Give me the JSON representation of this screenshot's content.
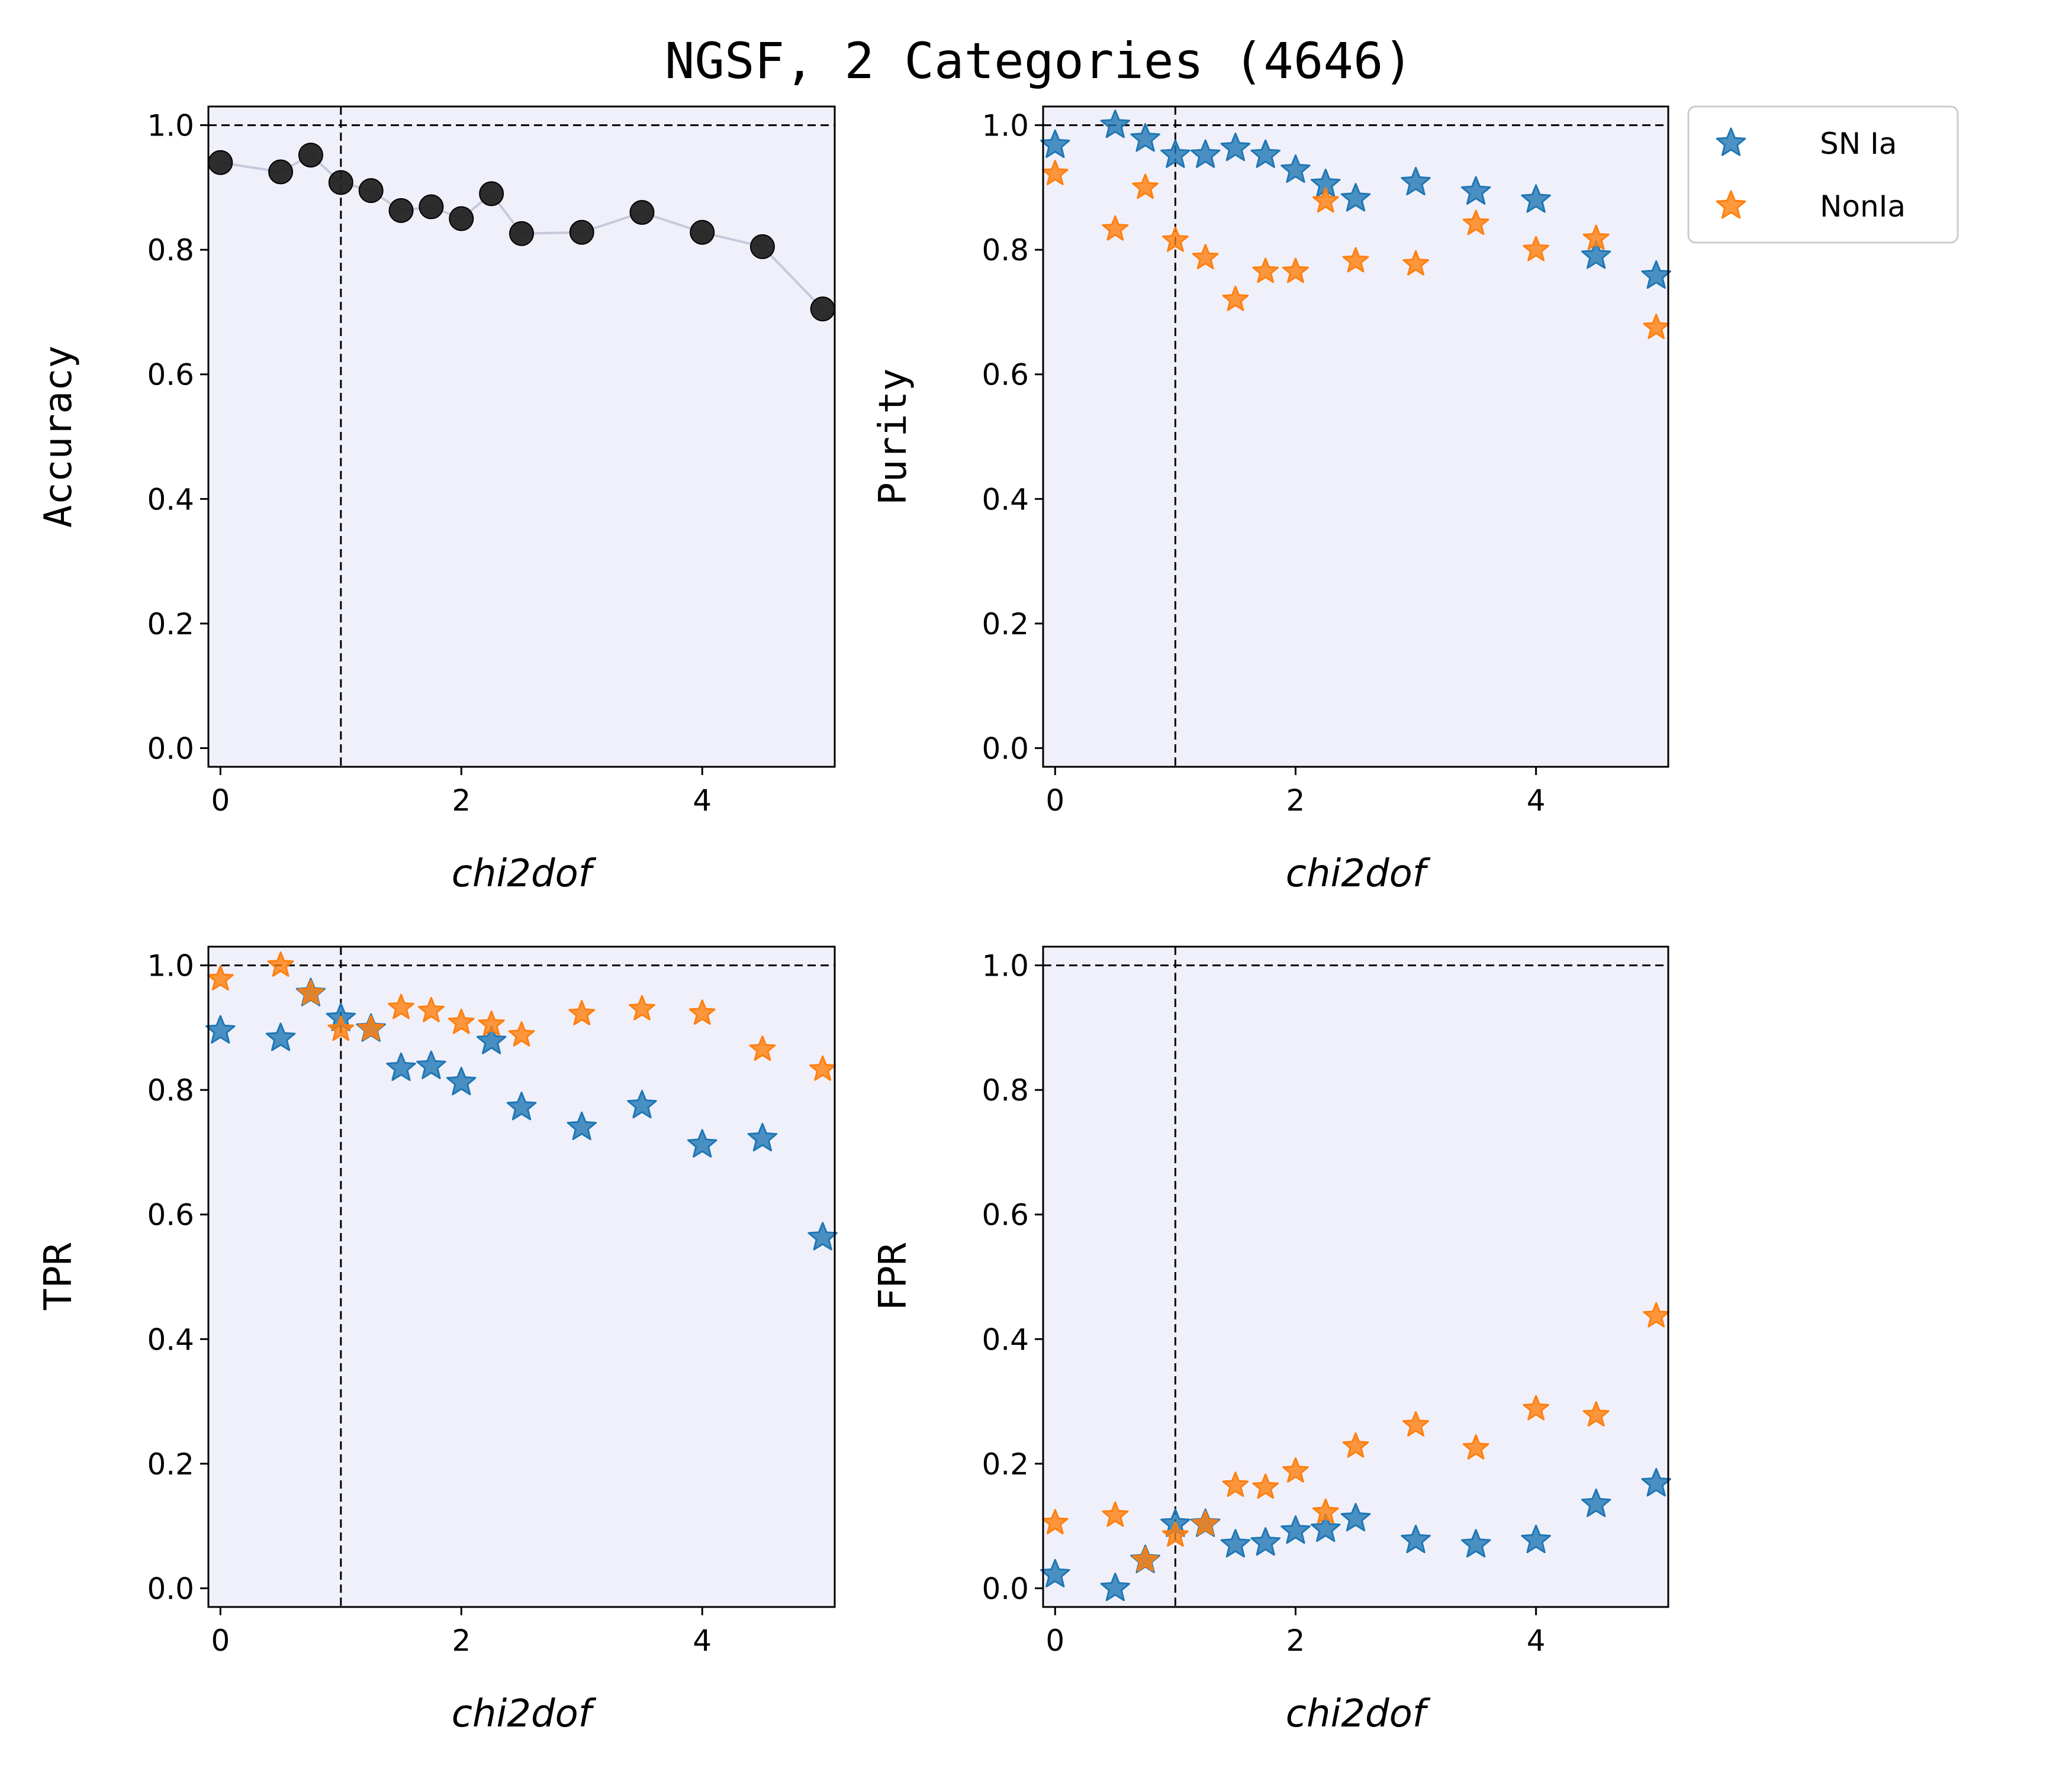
{
  "chart_data": {
    "title": "NGSF, 2 Categories (4646)",
    "legend": {
      "position": "outside-right-top",
      "entries": [
        {
          "name": "SN Ia",
          "color": "#1f77b4",
          "marker": "star"
        },
        {
          "name": "NonIa",
          "color": "#ff7f0e",
          "marker": "star"
        }
      ]
    },
    "panels": [
      {
        "id": "accuracy",
        "type": "line",
        "ylabel": "Accuracy",
        "xlabel": "chi2dof",
        "xlim": [
          -0.1,
          5.1
        ],
        "ylim": [
          -0.03,
          1.03
        ],
        "xticks": [
          0,
          2,
          4
        ],
        "yticks": [
          "0.0",
          "0.2",
          "0.4",
          "0.6",
          "0.8",
          "1.0"
        ],
        "hline": 1.0,
        "vline": 1.0,
        "background": "#f0f0fa",
        "series": [
          {
            "name": "Accuracy",
            "color": "#222222",
            "marker": "circle",
            "connect": true,
            "x": [
              0,
              0.5,
              0.75,
              1.0,
              1.25,
              1.5,
              1.75,
              2.0,
              2.25,
              2.5,
              3.0,
              3.5,
              4.0,
              4.5,
              5.0
            ],
            "y": [
              0.94,
              0.925,
              0.952,
              0.908,
              0.895,
              0.863,
              0.869,
              0.85,
              0.89,
              0.826,
              0.828,
              0.86,
              0.828,
              0.805,
              0.705
            ]
          }
        ]
      },
      {
        "id": "purity",
        "type": "scatter",
        "ylabel": "Purity",
        "xlabel": "chi2dof",
        "xlim": [
          -0.1,
          5.1
        ],
        "ylim": [
          -0.03,
          1.03
        ],
        "xticks": [
          0,
          2,
          4
        ],
        "yticks": [
          "0.0",
          "0.2",
          "0.4",
          "0.6",
          "0.8",
          "1.0"
        ],
        "hline": 1.0,
        "vline": 1.0,
        "background": "#f0f0fa",
        "series": [
          {
            "name": "SN Ia",
            "color": "#1f77b4",
            "marker": "star",
            "x": [
              0,
              0.5,
              0.75,
              1.0,
              1.25,
              1.5,
              1.75,
              2.0,
              2.25,
              2.5,
              3.0,
              3.5,
              4.0,
              4.5,
              5.0
            ],
            "y": [
              0.968,
              1.0,
              0.978,
              0.952,
              0.952,
              0.963,
              0.952,
              0.928,
              0.905,
              0.882,
              0.908,
              0.893,
              0.88,
              0.79,
              0.758
            ]
          },
          {
            "name": "NonIa",
            "color": "#ff7f0e",
            "marker": "star",
            "x": [
              0,
              0.5,
              0.75,
              1.0,
              1.25,
              1.5,
              1.75,
              2.0,
              2.25,
              2.5,
              3.0,
              3.5,
              4.0,
              4.5,
              5.0
            ],
            "y": [
              0.922,
              0.833,
              0.9,
              0.815,
              0.787,
              0.72,
              0.765,
              0.765,
              0.878,
              0.782,
              0.777,
              0.842,
              0.8,
              0.818,
              0.675
            ]
          }
        ]
      },
      {
        "id": "tpr",
        "type": "scatter",
        "ylabel": "TPR",
        "xlabel": "chi2dof",
        "xlim": [
          -0.1,
          5.1
        ],
        "ylim": [
          -0.03,
          1.03
        ],
        "xticks": [
          0,
          2,
          4
        ],
        "yticks": [
          "0.0",
          "0.2",
          "0.4",
          "0.6",
          "0.8",
          "1.0"
        ],
        "hline": 1.0,
        "vline": 1.0,
        "background": "#f0f0fa",
        "series": [
          {
            "name": "SN Ia",
            "color": "#1f77b4",
            "marker": "star",
            "x": [
              0,
              0.5,
              0.75,
              1.0,
              1.25,
              1.5,
              1.75,
              2.0,
              2.25,
              2.5,
              3.0,
              3.5,
              4.0,
              4.5,
              5.0
            ],
            "y": [
              0.895,
              0.883,
              0.955,
              0.915,
              0.898,
              0.835,
              0.838,
              0.812,
              0.878,
              0.772,
              0.74,
              0.775,
              0.712,
              0.722,
              0.563
            ]
          },
          {
            "name": "NonIa",
            "color": "#ff7f0e",
            "marker": "star",
            "x": [
              0,
              0.5,
              0.75,
              1.0,
              1.25,
              1.5,
              1.75,
              2.0,
              2.25,
              2.5,
              3.0,
              3.5,
              4.0,
              4.5,
              5.0
            ],
            "y": [
              0.978,
              1.0,
              0.955,
              0.897,
              0.898,
              0.932,
              0.927,
              0.908,
              0.905,
              0.888,
              0.922,
              0.93,
              0.923,
              0.865,
              0.833
            ]
          }
        ]
      },
      {
        "id": "fpr",
        "type": "scatter",
        "ylabel": "FPR",
        "xlabel": "chi2dof",
        "xlim": [
          -0.1,
          5.1
        ],
        "ylim": [
          -0.03,
          1.03
        ],
        "xticks": [
          0,
          2,
          4
        ],
        "yticks": [
          "0.0",
          "0.2",
          "0.4",
          "0.6",
          "0.8",
          "1.0"
        ],
        "hline": 1.0,
        "vline": 1.0,
        "background": "#f0f0fa",
        "series": [
          {
            "name": "SN Ia",
            "color": "#1f77b4",
            "marker": "star",
            "x": [
              0,
              0.5,
              0.75,
              1.0,
              1.25,
              1.5,
              1.75,
              2.0,
              2.25,
              2.5,
              3.0,
              3.5,
              4.0,
              4.5,
              5.0
            ],
            "y": [
              0.022,
              0.0,
              0.045,
              0.103,
              0.103,
              0.07,
              0.073,
              0.092,
              0.095,
              0.112,
              0.077,
              0.07,
              0.077,
              0.135,
              0.168
            ]
          },
          {
            "name": "NonIa",
            "color": "#ff7f0e",
            "marker": "star",
            "x": [
              0,
              0.5,
              0.75,
              1.0,
              1.25,
              1.5,
              1.75,
              2.0,
              2.25,
              2.5,
              3.0,
              3.5,
              4.0,
              4.5,
              5.0
            ],
            "y": [
              0.105,
              0.117,
              0.045,
              0.085,
              0.103,
              0.165,
              0.162,
              0.188,
              0.122,
              0.228,
              0.262,
              0.225,
              0.288,
              0.278,
              0.437
            ]
          }
        ]
      }
    ]
  }
}
